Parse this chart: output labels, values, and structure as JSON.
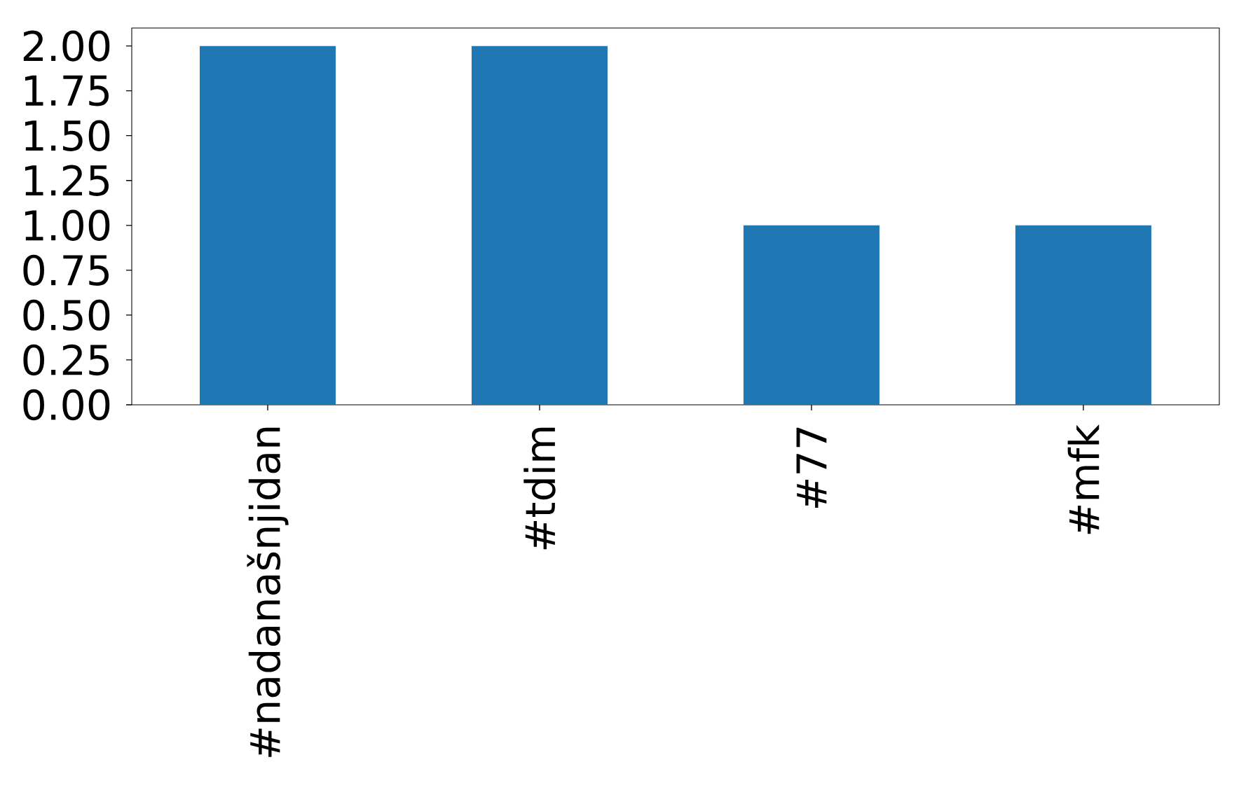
{
  "chart_data": {
    "type": "bar",
    "categories": [
      "#nadanašnjidan",
      "#tdim",
      "#77",
      "#mfk"
    ],
    "values": [
      2,
      2,
      1,
      1
    ],
    "color": "#1f77b4",
    "ylim": [
      0,
      2.1
    ],
    "yticks": [
      {
        "value": 0,
        "label": "0.00"
      },
      {
        "value": 0.25,
        "label": "0.25"
      },
      {
        "value": 0.5,
        "label": "0.50"
      },
      {
        "value": 0.75,
        "label": "0.75"
      },
      {
        "value": 1,
        "label": "1.00"
      },
      {
        "value": 1.25,
        "label": "1.25"
      },
      {
        "value": 1.5,
        "label": "1.50"
      },
      {
        "value": 1.75,
        "label": "1.75"
      },
      {
        "value": 2,
        "label": "2.00"
      }
    ],
    "grid": false
  }
}
